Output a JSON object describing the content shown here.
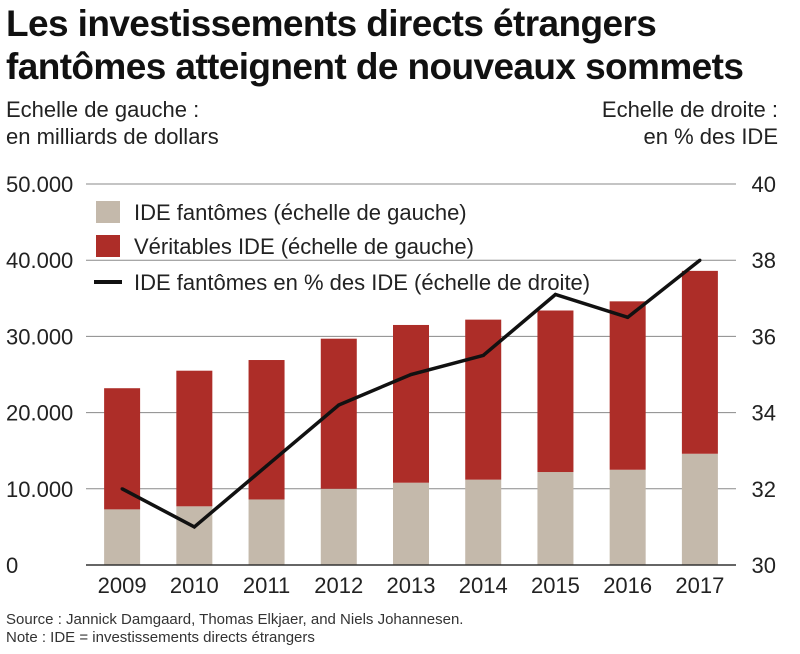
{
  "title_line1": "Les investissements directs étrangers",
  "title_line2": "fantômes atteignent de nouveaux sommets",
  "left_scale_line1": "Echelle de gauche :",
  "left_scale_line2": "en milliards de dollars",
  "right_scale_line1": "Echelle de droite :",
  "right_scale_line2": "en % des IDE",
  "source": "Source : Jannick Damgaard, Thomas Elkjaer, and Niels Johannesen.",
  "note": "Note : IDE = investissements directs étrangers",
  "colors": {
    "phantom": "#c4b9ab",
    "real": "#ad2d28",
    "line": "#111111",
    "grid": "#8a8a8a",
    "axis": "#333333"
  },
  "chart_data": {
    "type": "bar",
    "stacked": true,
    "categories": [
      "2009",
      "2010",
      "2011",
      "2012",
      "2013",
      "2014",
      "2015",
      "2016",
      "2017"
    ],
    "series": [
      {
        "name": "IDE fantômes (échelle de gauche)",
        "axis": "left",
        "kind": "bar",
        "values": [
          7300,
          7700,
          8600,
          10000,
          10800,
          11200,
          12200,
          12500,
          14600
        ]
      },
      {
        "name": "Véritables IDE (échelle de gauche)",
        "axis": "left",
        "kind": "bar",
        "values": [
          15900,
          17800,
          18300,
          19700,
          20700,
          21000,
          21200,
          22100,
          24000
        ]
      },
      {
        "name": "IDE fantômes en % des IDE (échelle de droite)",
        "axis": "right",
        "kind": "line",
        "values": [
          32.0,
          31.0,
          32.6,
          34.2,
          35.0,
          35.5,
          37.1,
          36.5,
          38.0
        ]
      }
    ],
    "y_left": {
      "min": 0,
      "max": 50000,
      "ticks": [
        0,
        10000,
        20000,
        30000,
        40000,
        50000
      ],
      "tick_labels": [
        "0",
        "10.000",
        "20.000",
        "30.000",
        "40.000",
        "50.000"
      ]
    },
    "y_right": {
      "min": 30,
      "max": 40,
      "ticks": [
        30,
        32,
        34,
        36,
        38,
        40
      ],
      "tick_labels": [
        "30",
        "32",
        "34",
        "36",
        "38",
        "40"
      ]
    },
    "grid": true,
    "legend_position": "top-left"
  }
}
